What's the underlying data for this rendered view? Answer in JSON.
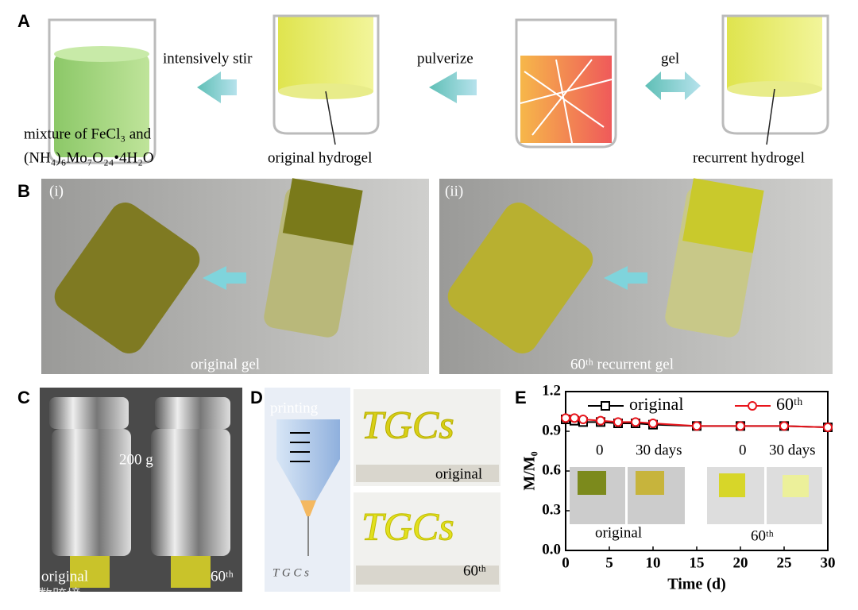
{
  "panel_a": {
    "label": "A",
    "arrows": [
      "intensively stir",
      "pulverize",
      "gel"
    ],
    "mixture_line1": "mixture of FeCl₃ and",
    "mixture_line2": "(NH₄)₆Mo₇O₂₄•4H₂O",
    "captions": [
      "original hydrogel",
      "recurrent hydrogel"
    ]
  },
  "panel_b": {
    "label": "B",
    "sub_labels": [
      "(i)",
      "(ii)"
    ],
    "captions": [
      "original gel",
      "60ᵗʰ recurrent gel"
    ]
  },
  "panel_c": {
    "label": "C",
    "weight": "200 g",
    "captions": [
      "original",
      "60ᵗʰ"
    ]
  },
  "panel_d": {
    "label": "D",
    "printing": "printing",
    "nozzle_text": "T G C s",
    "photo_text": [
      "TGCs",
      "TGCs"
    ],
    "captions": [
      "original",
      "60ᵗʰ"
    ]
  },
  "panel_e": {
    "label": "E",
    "chart_data": {
      "type": "line",
      "xlabel": "Time (d)",
      "ylabel": "M/M₀",
      "xlim": [
        0,
        30
      ],
      "ylim": [
        0,
        1.2
      ],
      "xticks": [
        0,
        5,
        10,
        15,
        20,
        25,
        30
      ],
      "yticks": [
        {
          "value": 0,
          "label": "0.0"
        },
        {
          "value": 0.3,
          "label": "0.3"
        },
        {
          "value": 0.6,
          "label": "0.6"
        },
        {
          "value": 0.9,
          "label": "0.9"
        },
        {
          "value": 1.2,
          "label": "1.2"
        }
      ],
      "x": [
        0,
        1,
        2,
        4,
        6,
        8,
        10,
        15,
        20,
        25,
        30
      ],
      "series": [
        {
          "name": "original",
          "color": "#000000",
          "marker": "square",
          "values": [
            0.99,
            0.98,
            0.97,
            0.97,
            0.96,
            0.96,
            0.95,
            0.94,
            0.94,
            0.94,
            0.93
          ]
        },
        {
          "name": "60ᵗʰ",
          "color": "#e8141b",
          "marker": "circle",
          "values": [
            1.0,
            1.0,
            0.99,
            0.98,
            0.97,
            0.97,
            0.96,
            0.94,
            0.94,
            0.94,
            0.93
          ]
        }
      ],
      "inset_labels": [
        "0",
        "30 days",
        "0",
        "30 days"
      ],
      "inset_captions": [
        "original",
        "60ᵗʰ"
      ]
    }
  },
  "watermark": "大数跨境"
}
